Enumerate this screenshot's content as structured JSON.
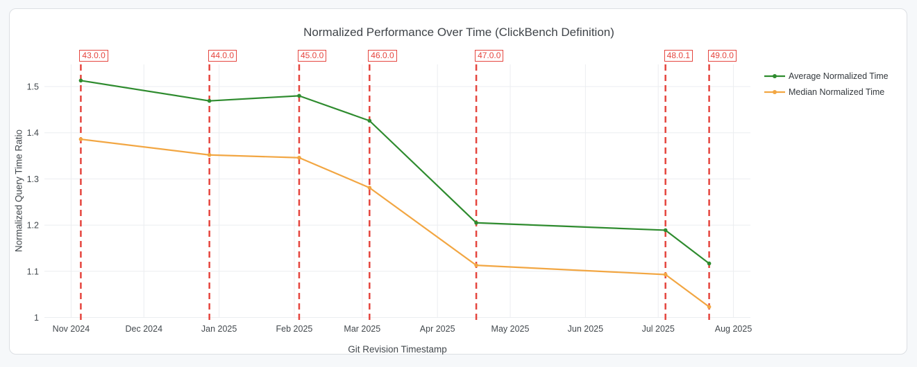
{
  "page": {
    "background_color": "#f6f8fa",
    "card_background": "#ffffff",
    "card_border": "#dcdfe3"
  },
  "chart_data": {
    "type": "line",
    "title": "Normalized Performance Over Time (ClickBench Definition)",
    "xlabel": "Git Revision Timestamp",
    "ylabel": "Normalized Query Time Ratio",
    "grid": true,
    "legend_position": "top-right-outside",
    "x_range": [
      "2024-10-21",
      "2025-08-08"
    ],
    "ylim": [
      1,
      1.548
    ],
    "colors": {
      "grid": "#ebedf0",
      "tick_text": "#42484d",
      "annotation": "#e5453e"
    },
    "x_ticks": [
      {
        "label": "Nov 2024",
        "date": "2024-11-01"
      },
      {
        "label": "Dec 2024",
        "date": "2024-12-01"
      },
      {
        "label": "Jan 2025",
        "date": "2025-01-01"
      },
      {
        "label": "Feb 2025",
        "date": "2025-02-01"
      },
      {
        "label": "Mar 2025",
        "date": "2025-03-01"
      },
      {
        "label": "Apr 2025",
        "date": "2025-04-01"
      },
      {
        "label": "May 2025",
        "date": "2025-05-01"
      },
      {
        "label": "Jun 2025",
        "date": "2025-06-01"
      },
      {
        "label": "Jul 2025",
        "date": "2025-07-01"
      },
      {
        "label": "Aug 2025",
        "date": "2025-08-01"
      }
    ],
    "y_ticks": [
      {
        "label": "1",
        "value": 1.0
      },
      {
        "label": "1.1",
        "value": 1.1
      },
      {
        "label": "1.2",
        "value": 1.2
      },
      {
        "label": "1.3",
        "value": 1.3
      },
      {
        "label": "1.4",
        "value": 1.4
      },
      {
        "label": "1.5",
        "value": 1.5
      }
    ],
    "x": [
      "2024-11-05",
      "2024-12-28",
      "2025-02-03",
      "2025-03-04",
      "2025-04-17",
      "2025-07-04",
      "2025-07-22"
    ],
    "series": [
      {
        "name": "Average Normalized Time",
        "color": "#2e8b2e",
        "values": [
          1.513,
          1.469,
          1.48,
          1.426,
          1.205,
          1.189,
          1.117
        ]
      },
      {
        "name": "Median Normalized Time",
        "color": "#f2a642",
        "values": [
          1.386,
          1.352,
          1.346,
          1.281,
          1.113,
          1.093,
          1.023
        ]
      }
    ],
    "annotations": [
      {
        "label": "43.0.0",
        "date": "2024-11-05"
      },
      {
        "label": "44.0.0",
        "date": "2024-12-28"
      },
      {
        "label": "45.0.0",
        "date": "2025-02-03"
      },
      {
        "label": "46.0.0",
        "date": "2025-03-04"
      },
      {
        "label": "47.0.0",
        "date": "2025-04-17"
      },
      {
        "label": "48.0.1",
        "date": "2025-07-04"
      },
      {
        "label": "49.0.0",
        "date": "2025-07-22"
      }
    ]
  }
}
